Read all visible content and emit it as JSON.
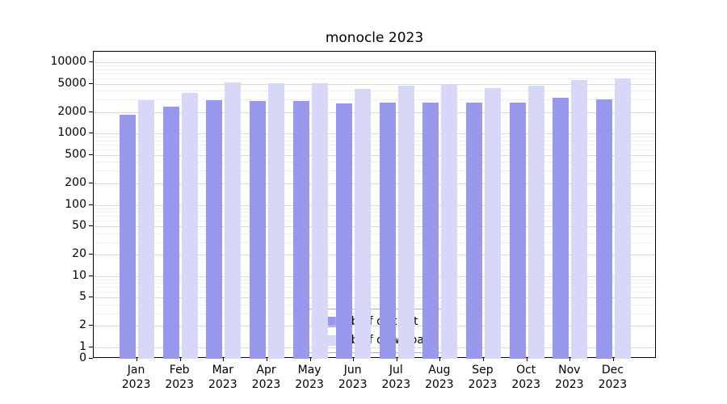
{
  "chart_data": {
    "type": "bar",
    "title": "monocle 2023",
    "yscale": "symlog",
    "grid": true,
    "legend_position": "lower center",
    "ylim": [
      0,
      12000
    ],
    "yticks": [
      0,
      1,
      2,
      5,
      10,
      20,
      50,
      100,
      200,
      500,
      1000,
      2000,
      5000,
      10000
    ],
    "categories": [
      "Jan",
      "Feb",
      "Mar",
      "Apr",
      "May",
      "Jun",
      "Jul",
      "Aug",
      "Sep",
      "Oct",
      "Nov",
      "Dec"
    ],
    "category_year": "2023",
    "series": [
      {
        "name": "Nb of distinct IPs",
        "color": "#9898ec",
        "values": [
          1850,
          2400,
          2900,
          2850,
          2850,
          2650,
          2700,
          2750,
          2700,
          2750,
          3150,
          3050
        ]
      },
      {
        "name": "Nb of downloads",
        "color": "#d7d7f8",
        "values": [
          2950,
          3750,
          5200,
          5100,
          5100,
          4250,
          4750,
          4900,
          4400,
          4650,
          5600,
          6000
        ]
      }
    ]
  }
}
